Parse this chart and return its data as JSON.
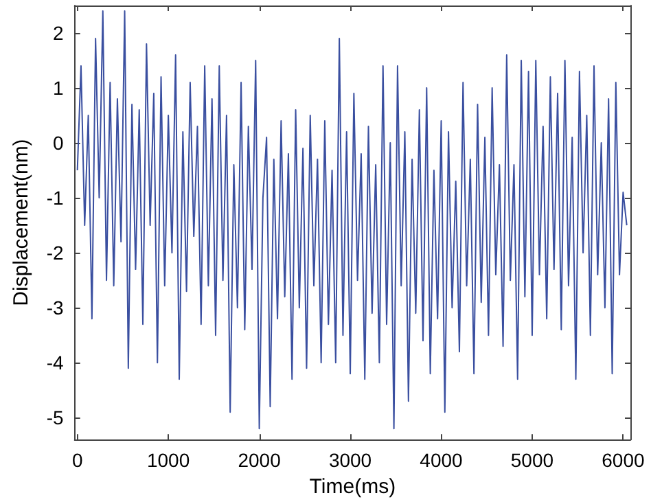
{
  "chart_data": {
    "type": "line",
    "xlabel": "Time(ms)",
    "ylabel": "Displacement(nm)",
    "xlim": [
      -30,
      6080
    ],
    "xticks": [
      0,
      1000,
      2000,
      3000,
      4000,
      5000,
      6000
    ],
    "ylim": [
      -5.4,
      2.5
    ],
    "yticks": [
      -5,
      -4,
      -3,
      -2,
      -1,
      0,
      1,
      2
    ],
    "marker": "none",
    "line_style": "solid",
    "series": [
      {
        "color": "#3a4fa0",
        "x": [
          0,
          40,
          80,
          120,
          160,
          200,
          240,
          280,
          320,
          360,
          400,
          440,
          480,
          520,
          560,
          600,
          640,
          680,
          720,
          760,
          800,
          840,
          880,
          920,
          960,
          1000,
          1040,
          1080,
          1120,
          1160,
          1200,
          1240,
          1280,
          1320,
          1360,
          1400,
          1440,
          1480,
          1520,
          1560,
          1600,
          1640,
          1680,
          1720,
          1760,
          1800,
          1840,
          1880,
          1920,
          1960,
          2000,
          2040,
          2080,
          2120,
          2160,
          2200,
          2240,
          2280,
          2320,
          2360,
          2400,
          2440,
          2480,
          2520,
          2560,
          2600,
          2640,
          2680,
          2720,
          2760,
          2800,
          2840,
          2880,
          2920,
          2960,
          3000,
          3040,
          3080,
          3120,
          3160,
          3200,
          3240,
          3280,
          3320,
          3360,
          3400,
          3440,
          3480,
          3520,
          3560,
          3600,
          3640,
          3680,
          3720,
          3760,
          3800,
          3840,
          3880,
          3920,
          3960,
          4000,
          4040,
          4080,
          4120,
          4160,
          4200,
          4240,
          4280,
          4320,
          4360,
          4400,
          4440,
          4480,
          4520,
          4560,
          4600,
          4640,
          4680,
          4720,
          4760,
          4800,
          4840,
          4880,
          4920,
          4960,
          5000,
          5040,
          5080,
          5120,
          5160,
          5200,
          5240,
          5280,
          5320,
          5360,
          5400,
          5440,
          5480,
          5520,
          5560,
          5600,
          5640,
          5680,
          5720,
          5760,
          5800,
          5840,
          5880,
          5920,
          5960,
          6000,
          6040
        ],
        "values": [
          -0.5,
          1.4,
          -1.5,
          0.5,
          -3.2,
          1.9,
          -1,
          2.4,
          -2.5,
          1.1,
          -2.6,
          0.8,
          -1.8,
          2.4,
          -4.1,
          0.7,
          -2.3,
          0.6,
          -3.3,
          1.8,
          -1.5,
          0.9,
          -4,
          1.2,
          -2.6,
          0.5,
          -2,
          1.6,
          -4.3,
          0.2,
          -2.7,
          1.1,
          -1.7,
          0.3,
          -3.3,
          1.4,
          -2.6,
          0.8,
          -3.5,
          1.4,
          -2.5,
          0.5,
          -4.9,
          -0.4,
          -3,
          1.1,
          -3.4,
          0.3,
          -2.3,
          1.5,
          -5.2,
          -1,
          0.1,
          -4.8,
          -0.3,
          -3.2,
          0.4,
          -2.8,
          -0.2,
          -4.3,
          0.6,
          -3,
          -0.1,
          -4.1,
          0.5,
          -2.6,
          -0.3,
          -4,
          0.4,
          -3.3,
          -0.5,
          -4,
          1.9,
          -3.5,
          0.2,
          -4.2,
          0.9,
          -2.5,
          -0.2,
          -4.3,
          0.3,
          -3.1,
          -0.4,
          -4,
          1.4,
          -3.3,
          0,
          -5.2,
          1.4,
          -2.6,
          0.2,
          -4.7,
          -0.3,
          -3.1,
          0.6,
          -3.6,
          1,
          -4.2,
          -0.5,
          -3.2,
          0.4,
          -4.9,
          0.2,
          -3,
          -0.7,
          -3.8,
          1.1,
          -2.6,
          -0.3,
          -4.2,
          0.7,
          -2.9,
          0.1,
          -3.5,
          1,
          -2.4,
          -0.4,
          -3.7,
          1.6,
          -2.5,
          -0.4,
          -4.3,
          1.5,
          -2.8,
          1.3,
          -3.5,
          1.5,
          -2.4,
          0.3,
          -3.2,
          1.2,
          -2.3,
          0.9,
          -3.4,
          1.5,
          -2.6,
          0.1,
          -4.3,
          1.3,
          -2,
          0.5,
          -3.5,
          1.4,
          -2.4,
          0,
          -3,
          0.8,
          -4.2,
          1.1,
          -2.4,
          -0.9,
          -1.5
        ]
      }
    ]
  }
}
